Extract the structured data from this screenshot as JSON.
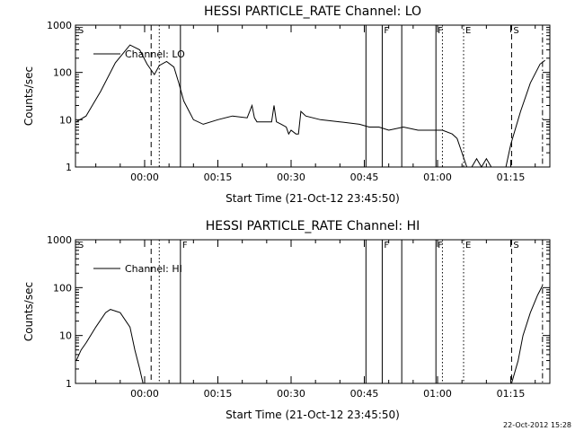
{
  "timestamp": "22-Oct-2012 15:28",
  "chart_data": [
    {
      "type": "line",
      "title": "HESSI PARTICLE_RATE Channel: LO",
      "xlabel": "Start Time (21-Oct-12 23:45:50)",
      "ylabel": "Counts/sec",
      "legend": "Channel: LO",
      "legend_position": "top-left",
      "y_scale": "log",
      "ylim": [
        1,
        1000
      ],
      "xlim": [
        "23:45:50",
        "01:23:00"
      ],
      "x_ticks": [
        "00:00",
        "00:15",
        "00:30",
        "00:45",
        "01:00",
        "01:15"
      ],
      "y_ticks": [
        "1",
        "10",
        "100",
        "1000"
      ],
      "series": [
        {
          "x": [
            "23:46:00",
            "23:48:00",
            "23:51:00",
            "23:54:00",
            "23:57:00",
            "23:59:00",
            "00:00:30",
            "00:02:00",
            "00:03:00",
            "00:04:30",
            "00:06:00",
            "00:07:00",
            "00:08:00",
            "00:10:00",
            "00:12:00",
            "00:15:00",
            "00:18:00",
            "00:21:00",
            "00:22:00",
            "00:22:30",
            "00:23:00",
            "00:24:00",
            "00:26:00",
            "00:26:30",
            "00:27:00",
            "00:28:00",
            "00:29:00",
            "00:29:30",
            "00:30:00",
            "00:31:00",
            "00:31:30",
            "00:32:00",
            "00:33:00",
            "00:36:00",
            "00:40:00",
            "00:44:00",
            "00:46:00",
            "00:48:00",
            "00:50:00",
            "00:53:00",
            "00:56:00",
            "00:59:00",
            "01:01:00",
            "01:03:00",
            "01:04:00",
            "01:05:00",
            "01:06:00",
            "01:07:00",
            "01:08:00",
            "01:09:00",
            "01:10:00",
            "01:11:00",
            "01:12:00",
            "01:13:00",
            "01:14:00",
            "01:15:00",
            "01:17:00",
            "01:19:00",
            "01:21:00",
            "01:22:00"
          ],
          "y": [
            9,
            12,
            40,
            160,
            380,
            300,
            150,
            90,
            140,
            170,
            130,
            60,
            25,
            10,
            8,
            10,
            12,
            11,
            20,
            11,
            9,
            9,
            9,
            20,
            9,
            8,
            7,
            5,
            6,
            5,
            5,
            15,
            12,
            10,
            9,
            8,
            7,
            7,
            6,
            7,
            6,
            6,
            6,
            5,
            4,
            2,
            1,
            1,
            1.5,
            1,
            1.5,
            1,
            1,
            1,
            1,
            3,
            15,
            60,
            150,
            180
          ]
        }
      ],
      "markers": [
        {
          "label": "S",
          "time": "23:46:00",
          "style": "none"
        },
        {
          "label": "",
          "time": "00:01:20",
          "style": "dashed"
        },
        {
          "label": "",
          "time": "00:03:00",
          "style": "dotted"
        },
        {
          "label": "",
          "time": "00:07:20",
          "style": "solid"
        },
        {
          "label": "",
          "time": "00:45:20",
          "style": "solid"
        },
        {
          "label": "F",
          "time": "00:48:40",
          "style": "solid"
        },
        {
          "label": "",
          "time": "00:52:40",
          "style": "solid"
        },
        {
          "label": "F",
          "time": "00:59:40",
          "style": "solid"
        },
        {
          "label": "",
          "time": "01:01:00",
          "style": "dotted"
        },
        {
          "label": "E",
          "time": "01:05:20",
          "style": "dotted"
        },
        {
          "label": "S",
          "time": "01:15:10",
          "style": "dashed"
        },
        {
          "label": "",
          "time": "01:21:30",
          "style": "dashdot"
        }
      ]
    },
    {
      "type": "line",
      "title": "HESSI PARTICLE_RATE Channel: HI",
      "xlabel": "Start Time (21-Oct-12 23:45:50)",
      "ylabel": "Counts/sec",
      "legend": "Channel: HI",
      "legend_position": "top-left",
      "y_scale": "log",
      "ylim": [
        1,
        1000
      ],
      "xlim": [
        "23:45:50",
        "01:23:00"
      ],
      "x_ticks": [
        "00:00",
        "00:15",
        "00:30",
        "00:45",
        "01:00",
        "01:15"
      ],
      "y_ticks": [
        "1",
        "10",
        "100",
        "1000"
      ],
      "series": [
        {
          "x": [
            "23:46:00",
            "23:47:00",
            "23:48:00",
            "23:50:00",
            "23:52:00",
            "23:53:00",
            "23:55:00",
            "23:57:00",
            "23:58:00",
            "23:59:00",
            "23:59:40",
            "01:15:10",
            "01:16:30",
            "01:17:30",
            "01:19:00",
            "01:20:30",
            "01:21:30"
          ],
          "y": [
            3,
            5,
            7,
            15,
            30,
            35,
            30,
            15,
            5,
            2,
            1,
            1,
            3,
            10,
            30,
            70,
            110
          ]
        }
      ],
      "markers": [
        {
          "label": "S",
          "time": "23:46:00",
          "style": "none"
        },
        {
          "label": "",
          "time": "00:01:20",
          "style": "dashed"
        },
        {
          "label": "",
          "time": "00:03:00",
          "style": "dotted"
        },
        {
          "label": "F",
          "time": "00:07:20",
          "style": "solid"
        },
        {
          "label": "",
          "time": "00:45:20",
          "style": "solid"
        },
        {
          "label": "F",
          "time": "00:48:40",
          "style": "solid"
        },
        {
          "label": "",
          "time": "00:52:40",
          "style": "solid"
        },
        {
          "label": "F",
          "time": "00:59:40",
          "style": "solid"
        },
        {
          "label": "",
          "time": "01:01:00",
          "style": "dotted"
        },
        {
          "label": "E",
          "time": "01:05:20",
          "style": "dotted"
        },
        {
          "label": "S",
          "time": "01:15:10",
          "style": "dashed"
        },
        {
          "label": "",
          "time": "01:21:30",
          "style": "dashdot"
        }
      ]
    }
  ]
}
